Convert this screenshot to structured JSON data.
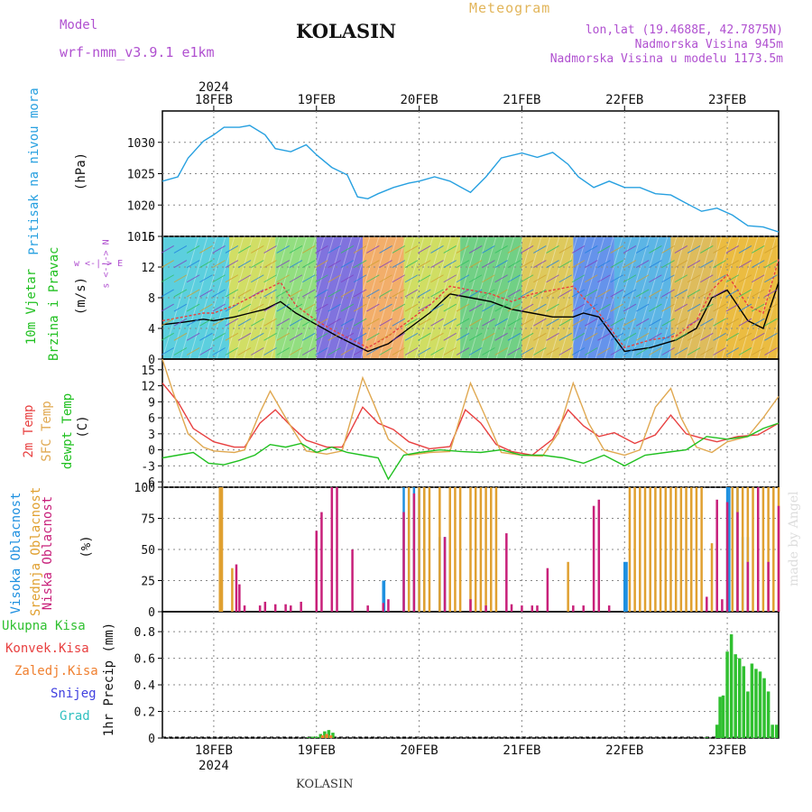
{
  "header": {
    "model_label": "Model",
    "model_name": "wrf-nmm_v3.9.1 e1km",
    "title": "KOLASIN",
    "meteogram": "Meteogram",
    "coords": "lon,lat (19.4688E, 42.7875N)",
    "elevation": "Nadmorska Visina 945m",
    "model_elevation": "Nadmorska Visina u modelu 1173.5m"
  },
  "footer": {
    "station": "KOLASIN"
  },
  "watermark": "made by Angel",
  "axes": {
    "year": "2024",
    "days": [
      "18FEB",
      "19FEB",
      "20FEB",
      "21FEB",
      "22FEB",
      "23FEB"
    ]
  },
  "labels": {
    "pressure": {
      "name": "Pritisak na nivou mora",
      "unit": "(hPa)"
    },
    "wind": {
      "name1": "10m Vjetar",
      "name2": "Brzina i Pravac",
      "unit": "(m/s)",
      "compass": "w <-|-> E",
      "compass_v": "s <-|-> N"
    },
    "temp": {
      "t2m": "2m Temp",
      "sfc": "SFC Temp",
      "dew": "dewpt Temp",
      "unit": "(C)"
    },
    "cloud": {
      "high": "Visoka Oblacnost",
      "mid": "Srednja Oblacnost",
      "low": "Niska Oblacnost",
      "unit": "(%)"
    },
    "precip": {
      "axis": "1hr Precip (mm)",
      "legend": [
        "Ukupna Kisa",
        "Konvek.Kisa",
        "Zaledj.Kisa",
        "Snijeg",
        "Grad"
      ]
    }
  },
  "colors": {
    "pressure": "#27a0e0",
    "t2m": "#e84040",
    "sfc": "#e0a850",
    "dew": "#20c020",
    "cloud_high": "#1e90e0",
    "cloud_mid": "#e0a030",
    "cloud_low": "#c8207a",
    "rain": "#30c030",
    "conv": "#e84040",
    "frz": "#f08030",
    "snow": "#4040e0",
    "grad": "#30c0c0",
    "purple": "#b050d0"
  },
  "chart_data": [
    {
      "type": "line",
      "name": "pressure",
      "x_unit": "days since 18FEB 00UTC",
      "xlim": [
        -0.5,
        5.5
      ],
      "ylim": [
        1015,
        1035
      ],
      "yticks": [
        1015,
        1020,
        1025,
        1030
      ],
      "series": [
        {
          "name": "Pritisak na nivou mora",
          "color": "#27a0e0",
          "x": [
            -0.5,
            -0.35,
            -0.25,
            -0.1,
            0,
            0.1,
            0.25,
            0.35,
            0.5,
            0.6,
            0.75,
            0.9,
            1.0,
            1.15,
            1.3,
            1.4,
            1.5,
            1.6,
            1.75,
            1.9,
            2.0,
            2.15,
            2.3,
            2.5,
            2.65,
            2.8,
            3.0,
            3.15,
            3.3,
            3.45,
            3.55,
            3.7,
            3.85,
            4.0,
            4.15,
            4.3,
            4.45,
            4.6,
            4.75,
            4.9,
            5.05,
            5.2,
            5.35,
            5.5
          ],
          "values": [
            1023.8,
            1024.5,
            1027.5,
            1030.2,
            1031.2,
            1032.4,
            1032.4,
            1032.7,
            1031.2,
            1029,
            1028.5,
            1029.6,
            1028,
            1026,
            1024.8,
            1021.3,
            1021,
            1021.8,
            1022.8,
            1023.5,
            1023.8,
            1024.5,
            1023.8,
            1022,
            1024.5,
            1027.5,
            1028.3,
            1027.6,
            1028.4,
            1026.5,
            1024.5,
            1022.8,
            1023.8,
            1022.8,
            1022.8,
            1021.8,
            1021.6,
            1020.3,
            1019,
            1019.5,
            1018.4,
            1016.7,
            1016.5,
            1015.7
          ]
        }
      ]
    },
    {
      "type": "line",
      "name": "wind",
      "ylim": [
        0,
        16
      ],
      "yticks": [
        0,
        4,
        8,
        12,
        16
      ],
      "series": [
        {
          "name": "speed",
          "color": "#000000",
          "x": [
            -0.5,
            -0.3,
            -0.1,
            0,
            0.2,
            0.35,
            0.5,
            0.65,
            0.8,
            1.0,
            1.2,
            1.35,
            1.5,
            1.7,
            1.9,
            2.1,
            2.3,
            2.5,
            2.7,
            2.9,
            3.1,
            3.3,
            3.5,
            3.6,
            3.75,
            4.0,
            4.25,
            4.5,
            4.7,
            4.85,
            5.0,
            5.2,
            5.35,
            5.5
          ],
          "values": [
            4.5,
            4.8,
            5.2,
            5.0,
            5.5,
            6.0,
            6.5,
            7.5,
            6.0,
            4.5,
            3.0,
            2.0,
            1.0,
            2.0,
            4.0,
            6.0,
            8.5,
            8.0,
            7.5,
            6.5,
            6.0,
            5.5,
            5.5,
            6.0,
            5.5,
            1.0,
            1.5,
            2.5,
            4.0,
            8.0,
            9.0,
            5.0,
            4.0,
            10.0
          ]
        },
        {
          "name": "gust",
          "color": "#e84040",
          "x": [
            -0.5,
            -0.3,
            -0.1,
            0,
            0.2,
            0.35,
            0.5,
            0.65,
            0.8,
            1.0,
            1.2,
            1.35,
            1.5,
            1.7,
            1.9,
            2.1,
            2.3,
            2.5,
            2.7,
            2.9,
            3.1,
            3.3,
            3.5,
            3.6,
            3.75,
            4.0,
            4.25,
            4.5,
            4.7,
            4.85,
            5.0,
            5.2,
            5.35,
            5.5
          ],
          "values": [
            5.0,
            5.5,
            6.0,
            6.0,
            7.0,
            8.0,
            9.0,
            10.0,
            7.0,
            5.0,
            3.5,
            2.5,
            1.5,
            3.0,
            5.0,
            7.0,
            9.5,
            9.0,
            8.5,
            7.5,
            8.5,
            9.0,
            9.5,
            8.0,
            6.0,
            1.5,
            2.5,
            3.0,
            5.0,
            9.0,
            11.0,
            7.0,
            6.0,
            13.0
          ]
        }
      ]
    },
    {
      "type": "line",
      "name": "temperature",
      "ylim": [
        -7,
        17
      ],
      "yticks": [
        -6,
        -3,
        0,
        3,
        6,
        9,
        12,
        15
      ],
      "series": [
        {
          "name": "2m Temp",
          "color": "#e84040",
          "x": [
            -0.5,
            -0.35,
            -0.2,
            0,
            0.2,
            0.3,
            0.45,
            0.6,
            0.75,
            0.9,
            1.1,
            1.25,
            1.45,
            1.6,
            1.75,
            1.9,
            2.1,
            2.3,
            2.45,
            2.6,
            2.75,
            2.9,
            3.1,
            3.3,
            3.45,
            3.6,
            3.75,
            3.9,
            4.1,
            4.3,
            4.45,
            4.6,
            4.75,
            4.9,
            5.1,
            5.3,
            5.5
          ],
          "values": [
            12.5,
            9,
            4,
            1.5,
            0.5,
            0.5,
            5,
            7.5,
            4.5,
            1.8,
            0.5,
            0.5,
            8,
            5,
            3.8,
            1.5,
            0.2,
            0.6,
            7.5,
            5,
            1.0,
            -0.3,
            -1.0,
            2.0,
            7.5,
            4.5,
            2.5,
            3.2,
            1.2,
            2.8,
            6.5,
            3.0,
            2.2,
            1.5,
            2.5,
            2.8,
            5.0
          ]
        },
        {
          "name": "SFC Temp",
          "color": "#e0a850",
          "x": [
            -0.5,
            -0.4,
            -0.25,
            -0.1,
            0,
            0.2,
            0.3,
            0.45,
            0.55,
            0.7,
            0.9,
            1.1,
            1.25,
            1.45,
            1.55,
            1.7,
            1.9,
            2.1,
            2.3,
            2.5,
            2.65,
            2.8,
            3.0,
            3.2,
            3.35,
            3.5,
            3.65,
            3.8,
            4.0,
            4.15,
            4.3,
            4.45,
            4.55,
            4.7,
            4.85,
            5.0,
            5.2,
            5.35,
            5.5
          ],
          "values": [
            17,
            11,
            3,
            0.5,
            -0.2,
            -0.5,
            0,
            7,
            11,
            6,
            -0.2,
            -0.8,
            -0.2,
            13.5,
            9,
            2,
            -1.0,
            -0.5,
            -0.3,
            12.5,
            6,
            -0.5,
            -1.0,
            -1.2,
            3,
            12.5,
            5,
            0.0,
            -1.0,
            0,
            8,
            11.5,
            6,
            0.5,
            -0.5,
            1.5,
            2.5,
            6,
            10
          ]
        },
        {
          "name": "dewpt Temp",
          "color": "#20c020",
          "x": [
            -0.5,
            -0.35,
            -0.2,
            -0.05,
            0.1,
            0.25,
            0.4,
            0.55,
            0.7,
            0.85,
            1.0,
            1.15,
            1.3,
            1.45,
            1.6,
            1.7,
            1.85,
            2.0,
            2.2,
            2.4,
            2.6,
            2.8,
            3.0,
            3.2,
            3.4,
            3.6,
            3.8,
            4.0,
            4.2,
            4.4,
            4.6,
            4.8,
            5.0,
            5.2,
            5.35,
            5.5
          ],
          "values": [
            -1.5,
            -1.0,
            -0.5,
            -2.5,
            -2.8,
            -2.0,
            -1.0,
            1.0,
            0.5,
            1.2,
            -0.5,
            0.5,
            -0.5,
            -1.0,
            -1.5,
            -5.5,
            -1.0,
            -0.5,
            0.0,
            -0.3,
            -0.5,
            0.0,
            -1.0,
            -1.0,
            -1.5,
            -2.5,
            -1.0,
            -3.0,
            -1.0,
            -0.5,
            0.0,
            2.5,
            2.0,
            2.5,
            4.0,
            5.0
          ]
        }
      ]
    },
    {
      "type": "bar",
      "name": "cloud",
      "ylim": [
        0,
        100
      ],
      "yticks": [
        0,
        25,
        50,
        75,
        100
      ],
      "series": [
        {
          "name": "Visoka Oblacnost",
          "color": "#1e90e0",
          "x": [
            1.65,
            1.66,
            1.85,
            1.9,
            1.95,
            2.0,
            2.05,
            2.2,
            2.25,
            4.0,
            4.02,
            5.0,
            5.02,
            5.05,
            5.1,
            5.15,
            5.2
          ],
          "values": [
            25,
            25,
            100,
            100,
            100,
            100,
            100,
            60,
            60,
            40,
            40,
            100,
            100,
            100,
            100,
            60,
            60
          ]
        },
        {
          "name": "Srednja Oblacnost",
          "color": "#e0a030",
          "x": [
            0.06,
            0.08,
            0.18,
            1.9,
            2.0,
            2.05,
            2.1,
            2.2,
            2.3,
            2.35,
            2.4,
            2.5,
            2.55,
            2.6,
            2.65,
            2.7,
            2.75,
            3.45,
            4.05,
            4.1,
            4.15,
            4.2,
            4.25,
            4.3,
            4.35,
            4.4,
            4.45,
            4.5,
            4.55,
            4.6,
            4.65,
            4.7,
            4.75,
            4.85,
            5.05,
            5.1,
            5.15,
            5.2,
            5.25,
            5.3,
            5.35,
            5.4,
            5.45,
            5.5
          ],
          "values": [
            100,
            100,
            35,
            100,
            100,
            100,
            100,
            100,
            100,
            100,
            100,
            100,
            100,
            100,
            100,
            100,
            100,
            40,
            100,
            100,
            100,
            100,
            100,
            100,
            100,
            100,
            100,
            100,
            100,
            100,
            100,
            100,
            100,
            55,
            100,
            100,
            100,
            100,
            100,
            100,
            100,
            100,
            100,
            100
          ]
        },
        {
          "name": "Niska Oblacnost",
          "color": "#c8207a",
          "x": [
            0.22,
            0.25,
            0.3,
            0.45,
            0.5,
            0.6,
            0.7,
            0.75,
            0.85,
            1.0,
            1.05,
            1.15,
            1.2,
            1.35,
            1.5,
            1.65,
            1.7,
            1.85,
            1.95,
            2.25,
            2.5,
            2.65,
            2.85,
            2.9,
            3.0,
            3.1,
            3.15,
            3.25,
            3.5,
            3.6,
            3.7,
            3.75,
            3.85,
            4.8,
            4.9,
            4.95,
            5.0,
            5.1,
            5.2,
            5.3,
            5.4,
            5.5
          ],
          "values": [
            38,
            22,
            5,
            5,
            8,
            6,
            6,
            5,
            8,
            65,
            80,
            100,
            100,
            50,
            5,
            7,
            10,
            80,
            95,
            60,
            10,
            5,
            63,
            6,
            5,
            5,
            5,
            35,
            5,
            5,
            85,
            90,
            5,
            12,
            90,
            10,
            88,
            80,
            40,
            100,
            40,
            85
          ]
        }
      ]
    },
    {
      "type": "bar",
      "name": "precipitation",
      "ylim": [
        0,
        0.95
      ],
      "yticks": [
        0,
        0.2,
        0.4,
        0.6,
        0.8
      ],
      "series": [
        {
          "name": "Ukupna Kisa",
          "color": "#30c030",
          "x": [
            0.92,
            0.96,
            1.0,
            1.04,
            1.08,
            1.12,
            1.16,
            4.8,
            4.9,
            4.93,
            4.96,
            5.0,
            5.04,
            5.08,
            5.12,
            5.16,
            5.2,
            5.24,
            5.28,
            5.32,
            5.36,
            5.4,
            5.44,
            5.48
          ],
          "values": [
            0.005,
            0.01,
            0.01,
            0.03,
            0.05,
            0.06,
            0.04,
            0.005,
            0.1,
            0.31,
            0.32,
            0.65,
            0.78,
            0.63,
            0.6,
            0.54,
            0.35,
            0.56,
            0.52,
            0.5,
            0.45,
            0.35,
            0.1,
            0.1
          ]
        },
        {
          "name": "Zaledj.Kisa",
          "color": "#f08030",
          "x": [
            1.06,
            1.1,
            1.14
          ],
          "values": [
            0.02,
            0.03,
            0.02
          ]
        }
      ]
    }
  ]
}
